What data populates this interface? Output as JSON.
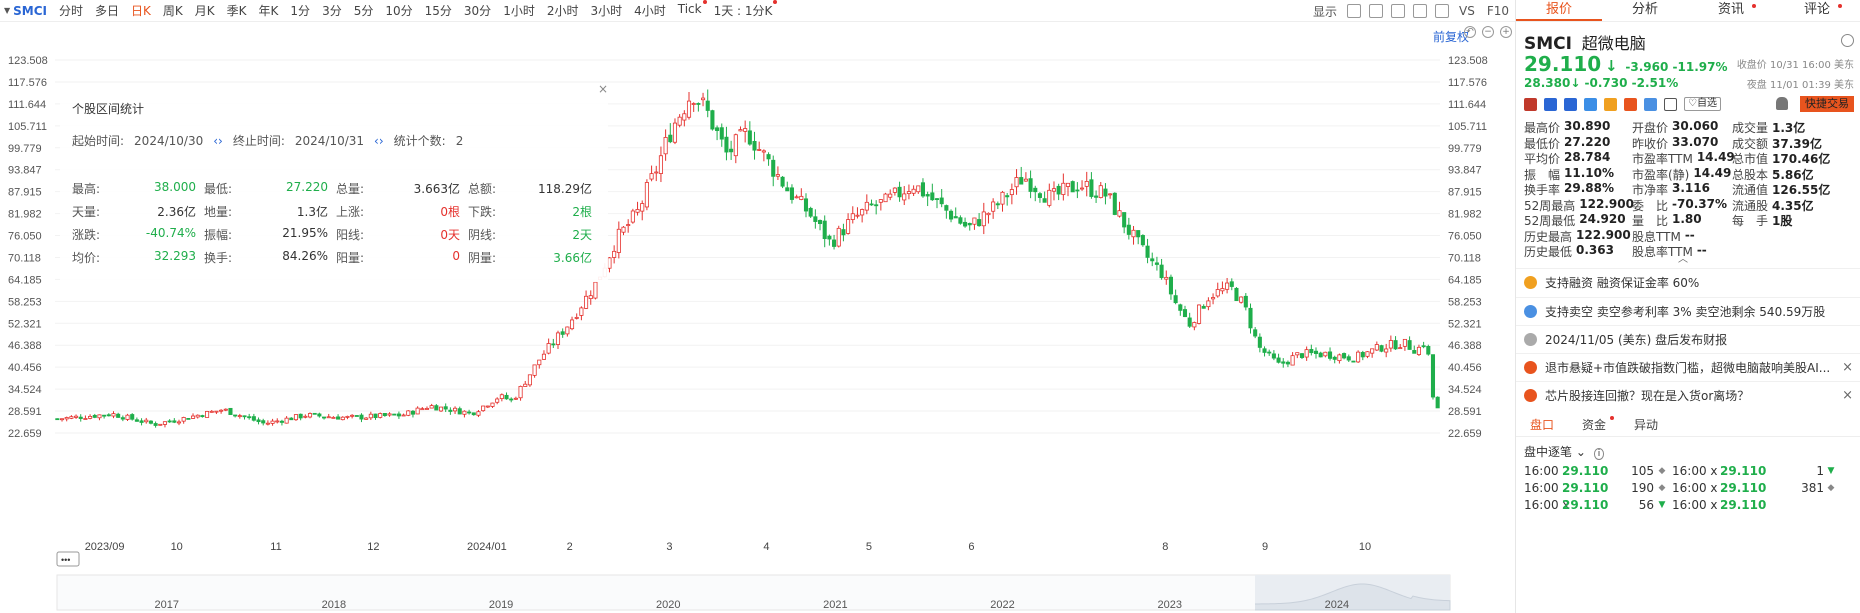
{
  "toolbar": {
    "symbol": "SMCI",
    "periods": [
      {
        "label": "分时",
        "active": false
      },
      {
        "label": "多日",
        "active": false
      },
      {
        "label": "日K",
        "active": true
      },
      {
        "label": "周K",
        "active": false
      },
      {
        "label": "月K",
        "active": false
      },
      {
        "label": "季K",
        "active": false
      },
      {
        "label": "年K",
        "active": false
      },
      {
        "label": "1分",
        "active": false
      },
      {
        "label": "3分",
        "active": false
      },
      {
        "label": "5分",
        "active": false
      },
      {
        "label": "10分",
        "active": false
      },
      {
        "label": "15分",
        "active": false
      },
      {
        "label": "30分",
        "active": false
      },
      {
        "label": "1小时",
        "active": false
      },
      {
        "label": "2小时",
        "active": false
      },
      {
        "label": "3小时",
        "active": false
      },
      {
        "label": "4小时",
        "active": false
      },
      {
        "label": "Tick",
        "active": false
      },
      {
        "label": "1天 : 1分K",
        "active": false
      }
    ],
    "display_label": "显示",
    "vs_label": "VS",
    "f10_label": "F10"
  },
  "chart": {
    "adjust_label": "前复权",
    "price_axis": [
      "123.508",
      "117.576",
      "111.644",
      "105.711",
      "99.779",
      "93.847",
      "87.915",
      "81.982",
      "76.050",
      "70.118",
      "64.185",
      "58.253",
      "52.321",
      "46.388",
      "40.456",
      "34.524",
      "28.591",
      "22.659"
    ],
    "y_top": 123.508,
    "y_bottom": 22.659,
    "time_axis": [
      {
        "label": "2023/09",
        "t": 0.02
      },
      {
        "label": "10",
        "t": 0.082
      },
      {
        "label": "11",
        "t": 0.154
      },
      {
        "label": "12",
        "t": 0.224
      },
      {
        "label": "2024/01",
        "t": 0.296
      },
      {
        "label": "2",
        "t": 0.368
      },
      {
        "label": "3",
        "t": 0.44
      },
      {
        "label": "4",
        "t": 0.51
      },
      {
        "label": "5",
        "t": 0.584
      },
      {
        "label": "6",
        "t": 0.658
      },
      {
        "label": "8",
        "t": 0.798
      },
      {
        "label": "9",
        "t": 0.87
      },
      {
        "label": "10",
        "t": 0.94
      }
    ],
    "overview_axis": [
      {
        "label": "2017",
        "t": 0.07
      },
      {
        "label": "2018",
        "t": 0.19
      },
      {
        "label": "2019",
        "t": 0.31
      },
      {
        "label": "2020",
        "t": 0.43
      },
      {
        "label": "2021",
        "t": 0.55
      },
      {
        "label": "2022",
        "t": 0.67
      },
      {
        "label": "2023",
        "t": 0.79
      },
      {
        "label": "2024",
        "t": 0.91
      }
    ],
    "overview_toggle": "•••",
    "colors": {
      "up": "#e5312d",
      "down": "#1fae4b",
      "grid": "#f2f2f2"
    }
  },
  "chart_data": {
    "type": "candlestick",
    "note_series": "approximate daily close trajectory of SMCI (pre-adjusted), Sep 2023 – Nov 2024",
    "anchors": [
      [
        0.0,
        26.5
      ],
      [
        0.04,
        27.8
      ],
      [
        0.07,
        25.0
      ],
      [
        0.09,
        26.5
      ],
      [
        0.12,
        29.0
      ],
      [
        0.15,
        25.2
      ],
      [
        0.18,
        27.5
      ],
      [
        0.21,
        26.8
      ],
      [
        0.25,
        27.5
      ],
      [
        0.27,
        30.0
      ],
      [
        0.3,
        28.0
      ],
      [
        0.32,
        32.5
      ],
      [
        0.33,
        31.5
      ],
      [
        0.35,
        43.0
      ],
      [
        0.37,
        52.0
      ],
      [
        0.39,
        63.0
      ],
      [
        0.405,
        75.0
      ],
      [
        0.42,
        82.0
      ],
      [
        0.435,
        95.0
      ],
      [
        0.445,
        105.0
      ],
      [
        0.46,
        115.0
      ],
      [
        0.47,
        110.0
      ],
      [
        0.485,
        98.0
      ],
      [
        0.5,
        104.0
      ],
      [
        0.515,
        96.0
      ],
      [
        0.53,
        88.0
      ],
      [
        0.545,
        82.0
      ],
      [
        0.56,
        74.0
      ],
      [
        0.575,
        80.0
      ],
      [
        0.59,
        84.0
      ],
      [
        0.6,
        85.0
      ],
      [
        0.62,
        90.0
      ],
      [
        0.64,
        84.0
      ],
      [
        0.66,
        78.0
      ],
      [
        0.68,
        84.0
      ],
      [
        0.7,
        92.0
      ],
      [
        0.72,
        86.0
      ],
      [
        0.74,
        90.0
      ],
      [
        0.76,
        87.0
      ],
      [
        0.775,
        78.0
      ],
      [
        0.79,
        70.0
      ],
      [
        0.8,
        66.0
      ],
      [
        0.81,
        58.0
      ],
      [
        0.82,
        52.0
      ],
      [
        0.835,
        60.0
      ],
      [
        0.85,
        62.0
      ],
      [
        0.86,
        57.0
      ],
      [
        0.87,
        46.0
      ],
      [
        0.885,
        41.0
      ],
      [
        0.9,
        44.0
      ],
      [
        0.92,
        44.0
      ],
      [
        0.94,
        43.0
      ],
      [
        0.96,
        46.0
      ],
      [
        0.975,
        47.0
      ],
      [
        0.985,
        45.0
      ],
      [
        0.992,
        48.0
      ],
      [
        0.996,
        33.0
      ],
      [
        1.0,
        29.1
      ]
    ]
  },
  "stats": {
    "title": "个股区间统计",
    "start_label": "起始时间:",
    "start": "2024/10/30",
    "end_label": "终止时间:",
    "end": "2024/10/31",
    "count_label": "统计个数:",
    "count": "2",
    "rows": [
      [
        [
          "最高:",
          "38.000",
          "green"
        ],
        [
          "最低:",
          "27.220",
          "green"
        ],
        [
          "总量:",
          "3.663亿",
          ""
        ],
        [
          "总额:",
          "118.29亿",
          ""
        ]
      ],
      [
        [
          "天量:",
          "2.36亿",
          ""
        ],
        [
          "地量:",
          "1.3亿",
          ""
        ],
        [
          "上涨:",
          "0根",
          "red"
        ],
        [
          "下跌:",
          "2根",
          "green"
        ]
      ],
      [
        [
          "涨跌:",
          "-40.74%",
          "green"
        ],
        [
          "振幅:",
          "21.95%",
          ""
        ],
        [
          "阳线:",
          "0天",
          "red"
        ],
        [
          "阴线:",
          "2天",
          "green"
        ]
      ],
      [
        [
          "均价:",
          "32.293",
          "green"
        ],
        [
          "换手:",
          "84.26%",
          ""
        ],
        [
          "阳量:",
          "0",
          "red"
        ],
        [
          "阴量:",
          "3.66亿",
          "green"
        ]
      ]
    ]
  },
  "panel": {
    "tabs": [
      {
        "label": "报价",
        "active": true,
        "dot": false
      },
      {
        "label": "分析",
        "active": false,
        "dot": false
      },
      {
        "label": "资讯",
        "active": false,
        "dot": true
      },
      {
        "label": "评论",
        "active": false,
        "dot": true
      }
    ],
    "symbol": "SMCI",
    "name": "超微电脑",
    "price": "29.110",
    "change": "-3.960",
    "change_pct": "-11.97%",
    "close_info": "收盘价 10/31 16:00 美东",
    "pm_price": "28.380",
    "pm_change": "-0.730",
    "pm_change_pct": "-2.51%",
    "pm_info": "夜盘 11/01 01:39 美东",
    "watch_label": "♡自选",
    "fast_trade": "快捷交易",
    "quote_rows": [
      [
        [
          "最高价",
          "30.890",
          "red"
        ],
        [
          "开盘价",
          "30.060",
          "green"
        ],
        [
          "成交量",
          "1.3亿",
          ""
        ]
      ],
      [
        [
          "最低价",
          "27.220",
          "green"
        ],
        [
          "昨收价",
          "33.070",
          ""
        ],
        [
          "成交额",
          "37.39亿",
          ""
        ]
      ],
      [
        [
          "平均价",
          "28.784",
          "green"
        ],
        [
          "市盈率TTM",
          "14.49",
          ""
        ],
        [
          "总市值",
          "170.46亿",
          ""
        ]
      ],
      [
        [
          "振　幅",
          "11.10%",
          ""
        ],
        [
          "市盈率(静)",
          "14.49",
          ""
        ],
        [
          "总股本",
          "5.86亿",
          ""
        ]
      ],
      [
        [
          "换手率",
          "29.88%",
          ""
        ],
        [
          "市净率",
          "3.116",
          ""
        ],
        [
          "流通值",
          "126.55亿",
          ""
        ]
      ],
      [
        [
          "52周最高",
          "122.900",
          "red"
        ],
        [
          "委　比",
          "-70.37%",
          "green"
        ],
        [
          "流通股",
          "4.35亿",
          ""
        ]
      ],
      [
        [
          "52周最低",
          "24.920",
          "green"
        ],
        [
          "量　比",
          "1.80",
          ""
        ],
        [
          "每　手",
          "1股",
          ""
        ]
      ],
      [
        [
          "历史最高",
          "122.900",
          "red"
        ],
        [
          "股息TTM",
          "--",
          ""
        ],
        [
          "",
          "",
          ""
        ]
      ],
      [
        [
          "历史最低",
          "0.363",
          "green"
        ],
        [
          "股息率TTM",
          "--",
          ""
        ],
        [
          "",
          "",
          ""
        ]
      ]
    ],
    "notices": [
      {
        "text": "支持融资 融资保证金率 60%",
        "color": "#f0a020",
        "closable": false
      },
      {
        "text": "支持卖空 卖空参考利率 3% 卖空池剩余 540.59万股",
        "color": "#4a90e2",
        "closable": false
      },
      {
        "text": "2024/11/05 (美东) 盘后发布财报",
        "color": "#aaaaaa",
        "closable": false
      },
      {
        "text": "退市悬疑+市值跌破指数门槛，超微电脑敲响美股AI...",
        "color": "#e8541e",
        "closable": true
      },
      {
        "text": "芯片股接连回撤？现在是入货or离场？",
        "color": "#e8541e",
        "closable": true
      }
    ],
    "bottom_tabs": [
      {
        "label": "盘口",
        "active": true,
        "dot": false
      },
      {
        "label": "资金",
        "active": false,
        "dot": true
      },
      {
        "label": "异动",
        "active": false,
        "dot": false
      }
    ],
    "tape_title": "盘中逐笔 ⌄",
    "tape": [
      {
        "t": "16:00",
        "p": "29.110",
        "q": "105",
        "d": "◆",
        "t2": "16:00 x",
        "p2": "29.110",
        "q2": "1",
        "d2": "▼"
      },
      {
        "t": "16:00",
        "p": "29.110",
        "q": "190",
        "d": "◆",
        "t2": "16:00 x",
        "p2": "29.110",
        "q2": "381",
        "d2": "◆"
      },
      {
        "t": "16:00 x",
        "p": "29.110",
        "q": "56",
        "d": "▼",
        "t2": "16:00 x",
        "p2": "29.110",
        "q2": "",
        "d2": ""
      }
    ]
  }
}
